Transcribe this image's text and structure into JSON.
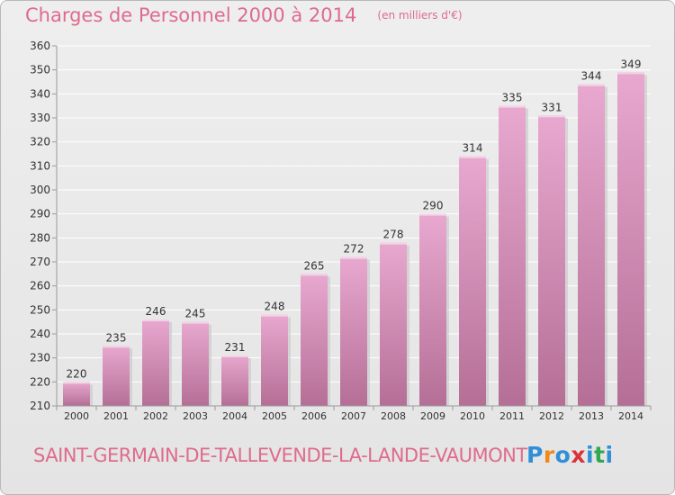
{
  "header": {
    "title": "Charges de Personnel 2000 à 2014",
    "subtitle": "(en milliers d'€)"
  },
  "footer": {
    "town": "SAINT-GERMAIN-DE-TALLEVENDE-LA-LANDE-VAUMONT",
    "logo": "Proxiti"
  },
  "colors": {
    "title": "#de6b8e",
    "bar_light": "#e8a8cf",
    "bar_dark": "#b56f97",
    "grid": "#ffffff",
    "axis": "#9a9a9a",
    "text": "#333333",
    "logo_letters": [
      "#2f8fd6",
      "#f08a1c",
      "#2f8fd6",
      "#d9323a",
      "#2f8fd6",
      "#2fa84f",
      "#2f8fd6"
    ]
  },
  "chart_data": {
    "type": "bar",
    "categories": [
      "2000",
      "2001",
      "2002",
      "2003",
      "2004",
      "2005",
      "2006",
      "2007",
      "2008",
      "2009",
      "2010",
      "2011",
      "2012",
      "2013",
      "2014"
    ],
    "values": [
      220,
      235,
      246,
      245,
      231,
      248,
      265,
      272,
      278,
      290,
      314,
      335,
      331,
      344,
      349
    ],
    "title": "Charges de Personnel 2000 à 2014",
    "subtitle": "(en milliers d'€)",
    "xlabel": "",
    "ylabel": "",
    "ylim": [
      210,
      360
    ],
    "yticks": [
      210,
      220,
      230,
      240,
      250,
      260,
      270,
      280,
      290,
      300,
      310,
      320,
      330,
      340,
      350,
      360
    ],
    "grid": true,
    "data_labels": true
  }
}
